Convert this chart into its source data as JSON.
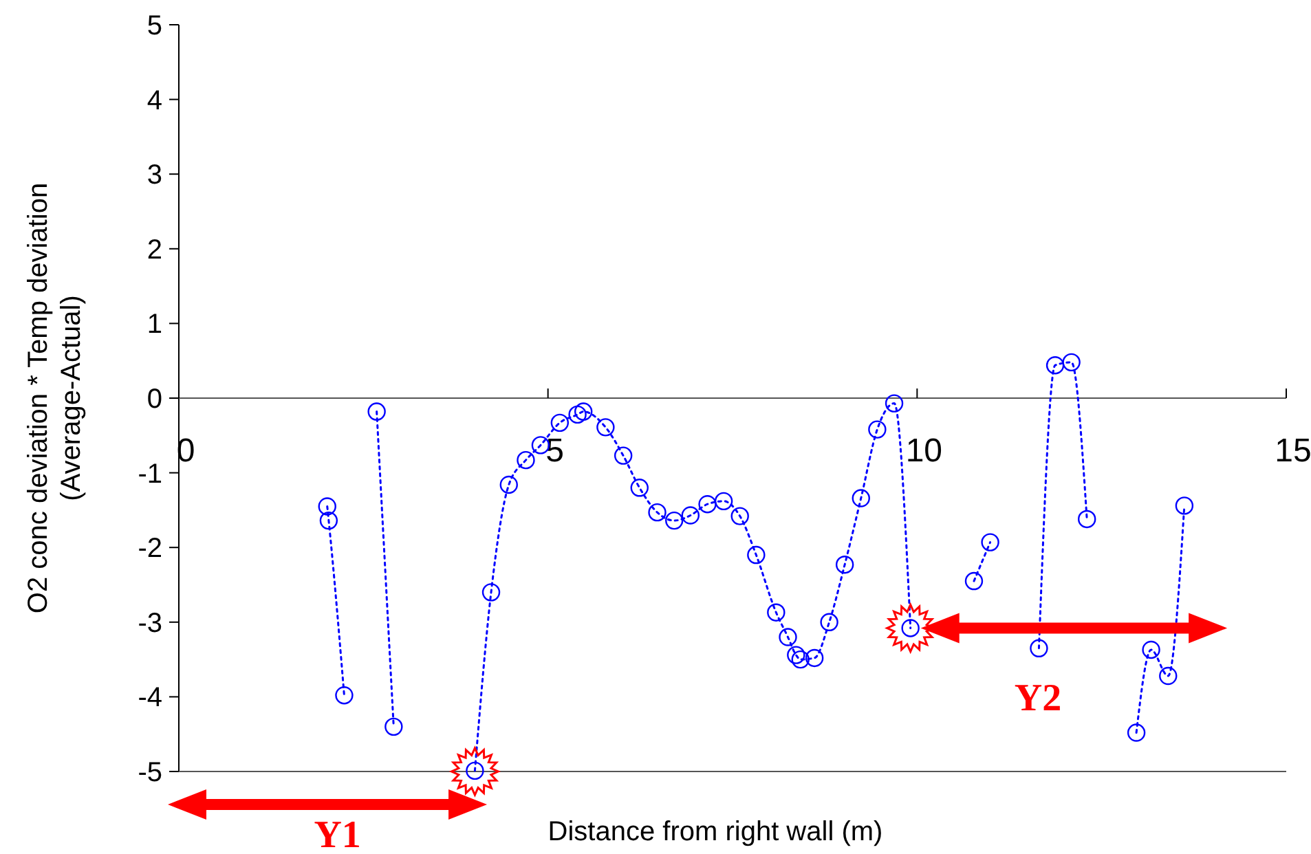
{
  "chart_data": {
    "type": "line",
    "xlabel": "Distance from right wall (m)",
    "ylabel": "O2 conc deviation * Temp deviation\n(Average-Actual)",
    "xlim": [
      0,
      15
    ],
    "xticks": [
      0,
      5,
      10,
      15
    ],
    "ylim": [
      -5,
      5
    ],
    "yticks": [
      -5,
      -4,
      -3,
      -2,
      -1,
      0,
      1,
      2,
      3,
      4,
      5
    ],
    "grid": false,
    "marker": "circle",
    "line_style": "dotted",
    "series": [
      {
        "color": "#0000ff",
        "x": [
          2.01,
          2.03,
          2.24
        ],
        "values": [
          -1.45,
          -1.64,
          -3.98
        ]
      },
      {
        "color": "#0000ff",
        "x": [
          2.68,
          2.91
        ],
        "values": [
          -0.18,
          -4.4
        ]
      },
      {
        "color": "#0000ff",
        "x": [
          4.01,
          4.23,
          4.47,
          4.7,
          4.9,
          5.16,
          5.4,
          5.48,
          5.78,
          6.02,
          6.24,
          6.48,
          6.71,
          6.93,
          7.16,
          7.38,
          7.6,
          7.82,
          8.09,
          8.25,
          8.36,
          8.42,
          8.61,
          8.81,
          9.02,
          9.24,
          9.46,
          9.69,
          9.91
        ],
        "values": [
          -4.99,
          -2.6,
          -1.16,
          -0.83,
          -0.63,
          -0.33,
          -0.22,
          -0.18,
          -0.39,
          -0.77,
          -1.2,
          -1.53,
          -1.64,
          -1.57,
          -1.42,
          -1.38,
          -1.58,
          -2.1,
          -2.87,
          -3.2,
          -3.44,
          -3.5,
          -3.48,
          -3.0,
          -2.23,
          -1.34,
          -0.42,
          -0.07,
          -3.08
        ]
      },
      {
        "color": "#0000ff",
        "x": [
          10.77,
          10.99
        ],
        "values": [
          -2.45,
          -1.93
        ]
      },
      {
        "color": "#0000ff",
        "x": [
          11.65,
          11.87,
          12.09,
          12.3
        ],
        "values": [
          -3.35,
          0.44,
          0.48,
          -1.62
        ]
      },
      {
        "color": "#0000ff",
        "x": [
          12.97,
          13.17,
          13.4,
          13.62
        ],
        "values": [
          -4.48,
          -3.37,
          -3.72,
          -1.44
        ]
      }
    ],
    "annotations": [
      "Y1",
      "Y2"
    ]
  }
}
